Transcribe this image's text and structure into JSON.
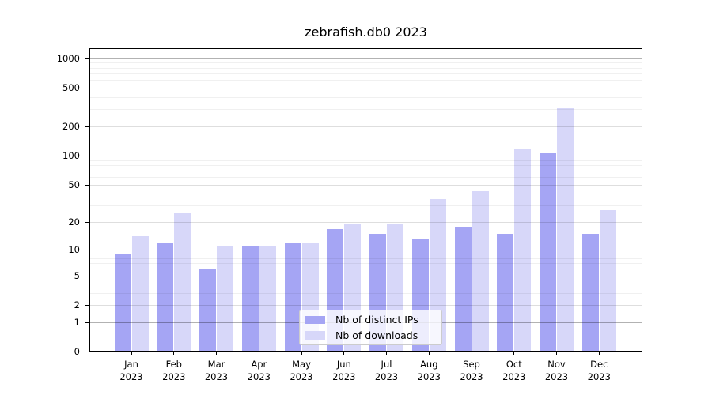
{
  "title": "zebrafish.db0 2023",
  "chart_data": {
    "type": "bar",
    "title": "zebrafish.db0 2023",
    "categories": [
      "Jan",
      "Feb",
      "Mar",
      "Apr",
      "May",
      "Jun",
      "Jul",
      "Aug",
      "Sep",
      "Oct",
      "Nov",
      "Dec"
    ],
    "year_label": "2023",
    "series": [
      {
        "name": "Nb of distinct IPs",
        "color": "#a5a5f4",
        "values": [
          9,
          12,
          6,
          11,
          12,
          17,
          15,
          13,
          18,
          15,
          106,
          15
        ]
      },
      {
        "name": "Nb of downloads",
        "color": "#d7d7f9",
        "values": [
          14,
          25,
          11,
          11,
          12,
          19,
          19,
          35,
          43,
          117,
          305,
          27
        ]
      }
    ],
    "xlabel": "",
    "ylabel": "",
    "ylim": [
      0,
      1000
    ],
    "y_ticks": [
      0,
      1,
      2,
      5,
      10,
      20,
      50,
      100,
      200,
      500,
      1000
    ],
    "y_scale": "log10(value+1)",
    "grid": true,
    "legend_position": "lower center"
  }
}
